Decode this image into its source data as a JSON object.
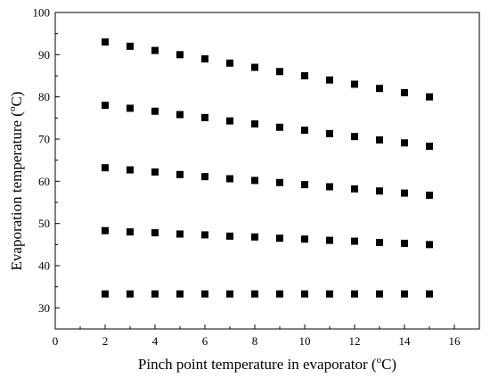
{
  "chart_data": {
    "type": "scatter",
    "title": "",
    "xlabel_parts": [
      "Pinch point temperature in evaporator (",
      "o",
      "C)"
    ],
    "ylabel_parts": [
      "Evaporation temperature (",
      "o",
      "C)"
    ],
    "xlim": [
      0,
      17
    ],
    "ylim": [
      25,
      100
    ],
    "xticks": [
      0,
      2,
      4,
      6,
      8,
      10,
      12,
      14,
      16
    ],
    "yticks": [
      30,
      40,
      50,
      60,
      70,
      80,
      90,
      100
    ],
    "grid": false,
    "legend": "none",
    "marker": "square",
    "marker_color": "#000000",
    "x": [
      2,
      3,
      4,
      5,
      6,
      7,
      8,
      9,
      10,
      11,
      12,
      13,
      14,
      15
    ],
    "series": [
      {
        "values": [
          93,
          92,
          91,
          90,
          89,
          88,
          87,
          86,
          85,
          84,
          83,
          82,
          81,
          80
        ]
      },
      {
        "values": [
          78,
          77.3,
          76.6,
          75.8,
          75.1,
          74.3,
          73.6,
          72.8,
          72.1,
          71.3,
          70.6,
          69.8,
          69.1,
          68.3
        ]
      },
      {
        "values": [
          63.2,
          62.7,
          62.2,
          61.6,
          61.1,
          60.6,
          60.2,
          59.7,
          59.2,
          58.7,
          58.2,
          57.7,
          57.2,
          56.7
        ]
      },
      {
        "values": [
          48.3,
          48,
          47.8,
          47.5,
          47.3,
          47,
          46.8,
          46.5,
          46.3,
          46,
          45.8,
          45.5,
          45.3,
          45
        ]
      },
      {
        "values": [
          33.3,
          33.3,
          33.3,
          33.3,
          33.3,
          33.3,
          33.3,
          33.3,
          33.3,
          33.3,
          33.3,
          33.3,
          33.3,
          33.3
        ]
      }
    ]
  }
}
